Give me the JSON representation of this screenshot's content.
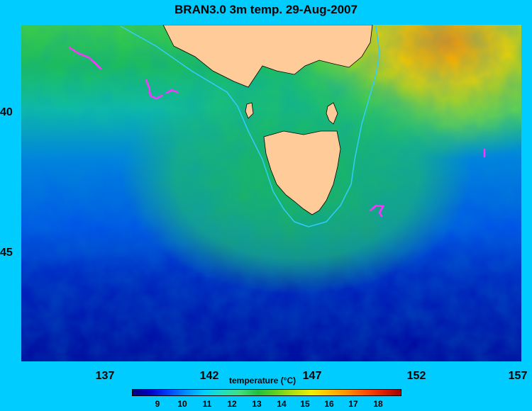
{
  "title": "BRAN3.0 3m temp. 29-Aug-2007",
  "axes": {
    "x_ticks": [
      "137",
      "142",
      "147",
      "152",
      "157"
    ],
    "y_ticks": [
      "40",
      "45"
    ]
  },
  "colorbar": {
    "title": "temperature (°C)",
    "ticks": [
      "9",
      "10",
      "11",
      "12",
      "13",
      "14",
      "15",
      "16",
      "17",
      "18"
    ]
  },
  "colors": {
    "background": "#00ccff",
    "land": "#ffcc99",
    "arrows": "#ff33ff"
  }
}
